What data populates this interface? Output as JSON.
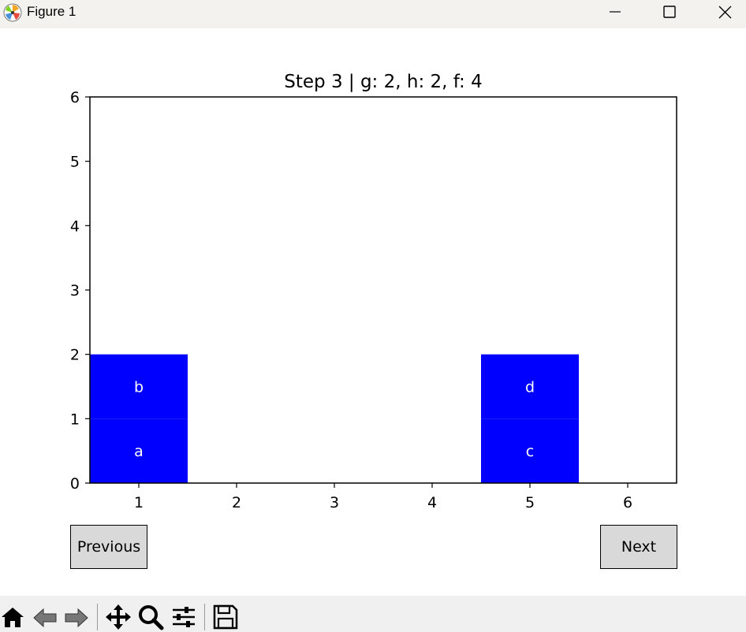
{
  "window": {
    "title": "Figure 1"
  },
  "chart_data": {
    "type": "bar",
    "title": "Step 3 | g: 2, h: 2, f: 4",
    "xlabel": "",
    "ylabel": "",
    "xlim": [
      0.5,
      6.5
    ],
    "ylim": [
      0,
      6
    ],
    "x_ticks": [
      "1",
      "2",
      "3",
      "4",
      "5",
      "6"
    ],
    "y_ticks": [
      "0",
      "1",
      "2",
      "3",
      "4",
      "5",
      "6"
    ],
    "stacks": [
      {
        "x": 1,
        "blocks": [
          "a",
          "b"
        ]
      },
      {
        "x": 5,
        "blocks": [
          "c",
          "d"
        ]
      }
    ],
    "block_color": "#0000ff",
    "label_color": "#ffffff",
    "grid": false
  },
  "buttons": {
    "previous": "Previous",
    "next": "Next"
  },
  "toolbar": {
    "icons": [
      "home-icon",
      "back-arrow-icon",
      "forward-arrow-icon",
      "pan-icon",
      "zoom-icon",
      "configure-subplots-icon",
      "save-icon"
    ]
  }
}
